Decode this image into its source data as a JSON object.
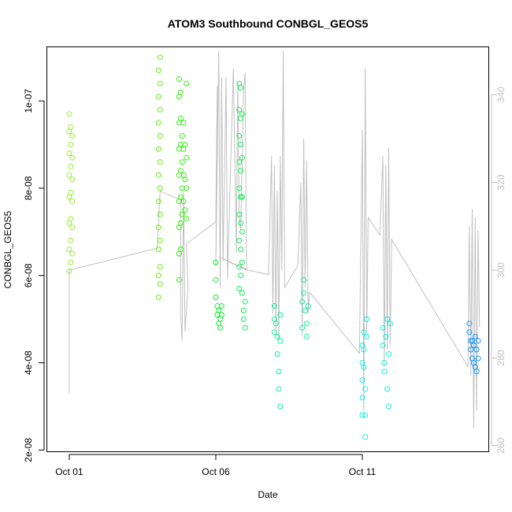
{
  "chart_data": {
    "type": "scatter",
    "title": "ATOM3 Southbound CONBGL_GEOS5",
    "xlabel": "Date",
    "ylabel": "CONBGL_GEOS5",
    "x_unit": "days since Oct 01",
    "xlim": [
      -0.75,
      14.3
    ],
    "ylim": [
      1.97e-08,
      1.123e-07
    ],
    "x_ticks": [
      {
        "value": 0,
        "label": "Oct 01"
      },
      {
        "value": 5,
        "label": "Oct 06"
      },
      {
        "value": 10,
        "label": "Oct 11"
      }
    ],
    "y_ticks": [
      {
        "value": 2e-08,
        "label": "2e-08"
      },
      {
        "value": 4e-08,
        "label": "4e-08"
      },
      {
        "value": 6e-08,
        "label": "6e-08"
      },
      {
        "value": 8e-08,
        "label": "8e-08"
      },
      {
        "value": 1e-07,
        "label": "1e-07"
      }
    ],
    "y2_ticks": [
      {
        "value": 260,
        "label": "260"
      },
      {
        "value": 280,
        "label": "280"
      },
      {
        "value": 300,
        "label": "300"
      },
      {
        "value": 320,
        "label": "320"
      },
      {
        "value": 340,
        "label": "340"
      }
    ],
    "y2lim": [
      258.7,
      350.8
    ],
    "grid": false,
    "series": [
      {
        "color": "#99ee33",
        "points": [
          [
            0.0,
            6.1e-08
          ],
          [
            0.0,
            6.6e-08
          ],
          [
            0.0,
            7.2e-08
          ],
          [
            0.0,
            7.8e-08
          ],
          [
            0.0,
            8.3e-08
          ],
          [
            0.0,
            8.8e-08
          ],
          [
            0.0,
            9.3e-08
          ],
          [
            0.0,
            9.7e-08
          ],
          [
            0.05,
            9.4e-08
          ],
          [
            0.05,
            9e-08
          ],
          [
            0.05,
            8.5e-08
          ],
          [
            0.05,
            7.9e-08
          ],
          [
            0.05,
            7.3e-08
          ],
          [
            0.05,
            6.8e-08
          ],
          [
            0.05,
            6.3e-08
          ],
          [
            0.1,
            6.5e-08
          ],
          [
            0.1,
            7.1e-08
          ],
          [
            0.1,
            7.7e-08
          ],
          [
            0.1,
            8.2e-08
          ],
          [
            0.1,
            8.7e-08
          ],
          [
            0.1,
            9.2e-08
          ]
        ]
      },
      {
        "color": "#66ee11",
        "points": [
          [
            3.05,
            5.5e-08
          ],
          [
            3.05,
            6e-08
          ],
          [
            3.05,
            6.6e-08
          ],
          [
            3.05,
            7.1e-08
          ],
          [
            3.05,
            7.7e-08
          ],
          [
            3.05,
            8.3e-08
          ],
          [
            3.05,
            8.9e-08
          ],
          [
            3.05,
            9.5e-08
          ],
          [
            3.05,
            1.01e-07
          ],
          [
            3.05,
            1.07e-07
          ],
          [
            3.1,
            1.1e-07
          ],
          [
            3.1,
            1.04e-07
          ],
          [
            3.1,
            9.8e-08
          ],
          [
            3.1,
            9.2e-08
          ],
          [
            3.1,
            8.6e-08
          ],
          [
            3.1,
            8e-08
          ],
          [
            3.1,
            7.4e-08
          ],
          [
            3.1,
            6.8e-08
          ],
          [
            3.1,
            6.2e-08
          ],
          [
            3.1,
            5.8e-08
          ]
        ]
      },
      {
        "color": "#33ee11",
        "points": [
          [
            3.75,
            5.9e-08
          ],
          [
            3.75,
            6.5e-08
          ],
          [
            3.75,
            7.1e-08
          ],
          [
            3.75,
            7.7e-08
          ],
          [
            3.75,
            8.3e-08
          ],
          [
            3.75,
            8.9e-08
          ],
          [
            3.75,
            9.5e-08
          ],
          [
            3.75,
            1.01e-07
          ],
          [
            3.75,
            1.05e-07
          ],
          [
            3.8,
            1.02e-07
          ],
          [
            3.8,
            9.6e-08
          ],
          [
            3.8,
            9e-08
          ],
          [
            3.8,
            8.4e-08
          ],
          [
            3.8,
            7.8e-08
          ],
          [
            3.8,
            7.2e-08
          ],
          [
            3.8,
            6.6e-08
          ],
          [
            3.85,
            9.2e-08
          ],
          [
            3.85,
            8.6e-08
          ],
          [
            3.85,
            8e-08
          ],
          [
            3.85,
            7.4e-08
          ],
          [
            3.9,
            9.5e-08
          ],
          [
            3.9,
            8.9e-08
          ],
          [
            3.9,
            8.3e-08
          ],
          [
            3.9,
            7.7e-08
          ],
          [
            3.95,
            9e-08
          ],
          [
            3.95,
            8.2e-08
          ],
          [
            3.95,
            7.5e-08
          ],
          [
            4.0,
            8.7e-08
          ],
          [
            4.0,
            8e-08
          ],
          [
            4.0,
            7.3e-08
          ],
          [
            4.0,
            1.04e-07
          ]
        ]
      },
      {
        "color": "#11ee33",
        "points": [
          [
            5.0,
            6.3e-08
          ],
          [
            5.0,
            5.9e-08
          ],
          [
            5.0,
            5.5e-08
          ],
          [
            5.05,
            5.3e-08
          ],
          [
            5.05,
            5.1e-08
          ],
          [
            5.1,
            4.9e-08
          ],
          [
            5.1,
            5.2e-08
          ],
          [
            5.15,
            5e-08
          ],
          [
            5.15,
            4.8e-08
          ],
          [
            5.2,
            5.1e-08
          ],
          [
            5.2,
            5.3e-08
          ]
        ]
      },
      {
        "color": "#11ee55",
        "points": [
          [
            5.8,
            5.7e-08
          ],
          [
            5.8,
            6.2e-08
          ],
          [
            5.8,
            6.8e-08
          ],
          [
            5.8,
            7.4e-08
          ],
          [
            5.8,
            8e-08
          ],
          [
            5.8,
            8.6e-08
          ],
          [
            5.8,
            9.2e-08
          ],
          [
            5.8,
            9.8e-08
          ],
          [
            5.8,
            1.04e-07
          ],
          [
            5.85,
            1.03e-07
          ],
          [
            5.85,
            9.6e-08
          ],
          [
            5.85,
            9e-08
          ],
          [
            5.85,
            8.4e-08
          ],
          [
            5.85,
            7.8e-08
          ],
          [
            5.85,
            7.2e-08
          ],
          [
            5.85,
            6.6e-08
          ],
          [
            5.85,
            6e-08
          ],
          [
            5.9,
            5.6e-08
          ],
          [
            5.9,
            6.3e-08
          ],
          [
            5.9,
            7e-08
          ],
          [
            5.9,
            7.8e-08
          ],
          [
            5.9,
            8.7e-08
          ],
          [
            5.9,
            9.7e-08
          ],
          [
            5.95,
            5.2e-08
          ],
          [
            5.95,
            5e-08
          ],
          [
            6.0,
            4.8e-08
          ],
          [
            6.0,
            5.4e-08
          ]
        ]
      },
      {
        "color": "#11ee99",
        "points": [
          [
            7.0,
            4.7e-08
          ],
          [
            7.0,
            5e-08
          ],
          [
            7.0,
            5.3e-08
          ],
          [
            7.05,
            4.9e-08
          ],
          [
            7.1,
            4.6e-08
          ],
          [
            7.1,
            4.2e-08
          ],
          [
            7.15,
            3.8e-08
          ],
          [
            7.15,
            3.4e-08
          ],
          [
            7.2,
            3e-08
          ],
          [
            7.2,
            4.5e-08
          ],
          [
            7.2,
            5.1e-08
          ],
          [
            7.95,
            4.8e-08
          ],
          [
            7.95,
            5.4e-08
          ],
          [
            8.0,
            5.9e-08
          ],
          [
            8.0,
            5.6e-08
          ],
          [
            8.05,
            5.2e-08
          ],
          [
            8.1,
            4.9e-08
          ],
          [
            8.1,
            4.6e-08
          ],
          [
            8.15,
            5.3e-08
          ]
        ]
      },
      {
        "color": "#11eedd",
        "points": [
          [
            10.0,
            2.8e-08
          ],
          [
            10.0,
            3.2e-08
          ],
          [
            10.0,
            3.6e-08
          ],
          [
            10.0,
            4e-08
          ],
          [
            10.0,
            4.4e-08
          ],
          [
            10.05,
            4.7e-08
          ],
          [
            10.05,
            4.3e-08
          ],
          [
            10.05,
            3.9e-08
          ],
          [
            10.1,
            3.4e-08
          ],
          [
            10.1,
            2.8e-08
          ],
          [
            10.1,
            2.3e-08
          ],
          [
            10.15,
            5e-08
          ],
          [
            10.15,
            4.6e-08
          ],
          [
            10.7,
            4.8e-08
          ],
          [
            10.7,
            4.4e-08
          ],
          [
            10.75,
            4e-08
          ],
          [
            10.75,
            3.8e-08
          ],
          [
            10.8,
            4.6e-08
          ],
          [
            10.85,
            5e-08
          ],
          [
            10.85,
            3.4e-08
          ],
          [
            10.9,
            3e-08
          ],
          [
            10.9,
            4.2e-08
          ],
          [
            10.95,
            4.9e-08
          ]
        ]
      },
      {
        "color": "#1199ff",
        "points": [
          [
            13.65,
            4.9e-08
          ],
          [
            13.65,
            4.7e-08
          ],
          [
            13.7,
            4.5e-08
          ],
          [
            13.7,
            4.3e-08
          ],
          [
            13.75,
            4.1e-08
          ],
          [
            13.75,
            4.5e-08
          ],
          [
            13.8,
            4e-08
          ],
          [
            13.8,
            4.4e-08
          ],
          [
            13.85,
            3.9e-08
          ],
          [
            13.85,
            4.6e-08
          ],
          [
            13.9,
            4.3e-08
          ],
          [
            13.9,
            3.8e-08
          ],
          [
            13.95,
            4.1e-08
          ],
          [
            13.95,
            4.5e-08
          ]
        ]
      }
    ],
    "secondary_series": {
      "color": "#c0c0c0",
      "points": [
        [
          0.0,
          300
        ],
        [
          0.0,
          272
        ],
        [
          0.0,
          290
        ],
        [
          0.0,
          300
        ],
        [
          3.0,
          305
        ],
        [
          3.1,
          318
        ],
        [
          3.8,
          316
        ],
        [
          3.8,
          290
        ],
        [
          3.85,
          284
        ],
        [
          3.9,
          318
        ],
        [
          3.95,
          286
        ],
        [
          4.05,
          296
        ],
        [
          4.0,
          306
        ],
        [
          5.0,
          311
        ],
        [
          5.05,
          342
        ],
        [
          5.0,
          301
        ],
        [
          5.1,
          350
        ],
        [
          5.15,
          296
        ],
        [
          5.2,
          344
        ],
        [
          5.25,
          302
        ],
        [
          5.35,
          344
        ],
        [
          5.4,
          298
        ],
        [
          5.6,
          346
        ],
        [
          5.7,
          304
        ],
        [
          5.75,
          343
        ],
        [
          5.8,
          312
        ],
        [
          5.85,
          309
        ],
        [
          5.95,
          341
        ],
        [
          6.0,
          345
        ],
        [
          6.05,
          300
        ],
        [
          5.1,
          303
        ],
        [
          6.1,
          300
        ],
        [
          6.8,
          299
        ],
        [
          6.9,
          326
        ],
        [
          6.95,
          290
        ],
        [
          7.0,
          324
        ],
        [
          7.05,
          286
        ],
        [
          7.1,
          318
        ],
        [
          7.15,
          284
        ],
        [
          7.2,
          326
        ],
        [
          7.25,
          300
        ],
        [
          7.3,
          350
        ],
        [
          7.35,
          296
        ],
        [
          7.8,
          301
        ],
        [
          7.9,
          320
        ],
        [
          7.95,
          285
        ],
        [
          8.0,
          330
        ],
        [
          8.05,
          296
        ],
        [
          8.1,
          325
        ],
        [
          8.15,
          290
        ],
        [
          8.2,
          295
        ],
        [
          9.9,
          281
        ],
        [
          10.0,
          332
        ],
        [
          10.05,
          268
        ],
        [
          10.1,
          346
        ],
        [
          10.15,
          286
        ],
        [
          10.2,
          312
        ],
        [
          10.6,
          308
        ],
        [
          10.7,
          326
        ],
        [
          10.75,
          278
        ],
        [
          10.8,
          324
        ],
        [
          10.85,
          282
        ],
        [
          10.9,
          328
        ],
        [
          10.95,
          283
        ],
        [
          11.0,
          307
        ],
        [
          13.6,
          278
        ],
        [
          13.65,
          310
        ],
        [
          13.7,
          276
        ],
        [
          13.75,
          314
        ],
        [
          13.8,
          264
        ],
        [
          13.85,
          312
        ],
        [
          13.9,
          268
        ],
        [
          13.95,
          309
        ],
        [
          14.0,
          287
        ]
      ]
    }
  }
}
